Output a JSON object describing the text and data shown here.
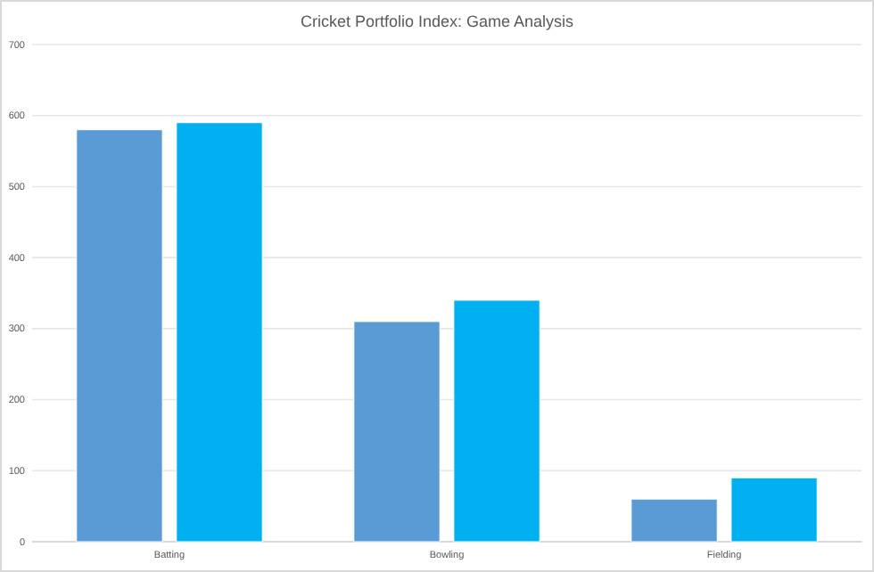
{
  "chart_data": {
    "type": "bar",
    "title": "Cricket Portfolio Index: Game Analysis",
    "categories": [
      "Batting",
      "Bowling",
      "Fielding"
    ],
    "series": [
      {
        "color": "#5b9bd5",
        "values": [
          580,
          310,
          60
        ]
      },
      {
        "color": "#00b0f0",
        "values": [
          590,
          340,
          90
        ]
      }
    ],
    "ylim": [
      0,
      700
    ],
    "yticks": [
      0,
      100,
      200,
      300,
      400,
      500,
      600,
      700
    ],
    "grid": "y"
  }
}
